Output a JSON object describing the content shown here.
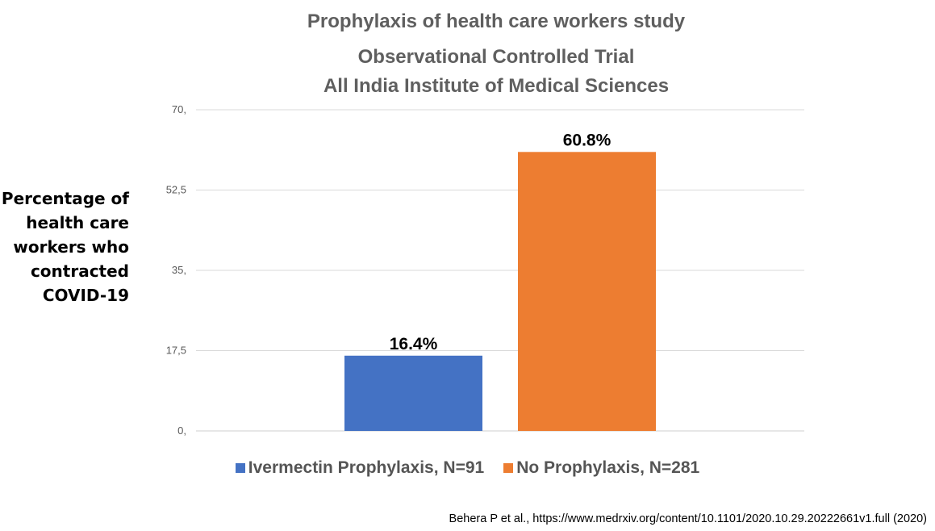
{
  "chart_data": {
    "type": "bar",
    "title": [
      "Prophylaxis of health care workers study",
      "Observational Controlled Trial",
      "All India Institute of Medical Sciences"
    ],
    "ylabel": [
      "Percentage of",
      "health care",
      "workers who",
      "contracted",
      "COVID-19"
    ],
    "xlabel": "",
    "ylim": [
      0,
      70
    ],
    "yticks": [
      0,
      17.5,
      35,
      52.5,
      70
    ],
    "ytick_labels": [
      "0,",
      "17,5",
      "35,",
      "52,5",
      "70,"
    ],
    "grid": true,
    "legend_position": "bottom",
    "series": [
      {
        "name": "Ivermectin Prophylaxis, N=91",
        "value": 16.4,
        "label": "16.4%",
        "color": "#4472c4"
      },
      {
        "name": "No Prophylaxis, N=281",
        "value": 60.8,
        "label": "60.8%",
        "color": "#ed7d31"
      }
    ]
  },
  "source": "Behera P et al., https://www.medrxiv.org/content/10.1101/2020.10.29.20222661v1.full (2020)"
}
